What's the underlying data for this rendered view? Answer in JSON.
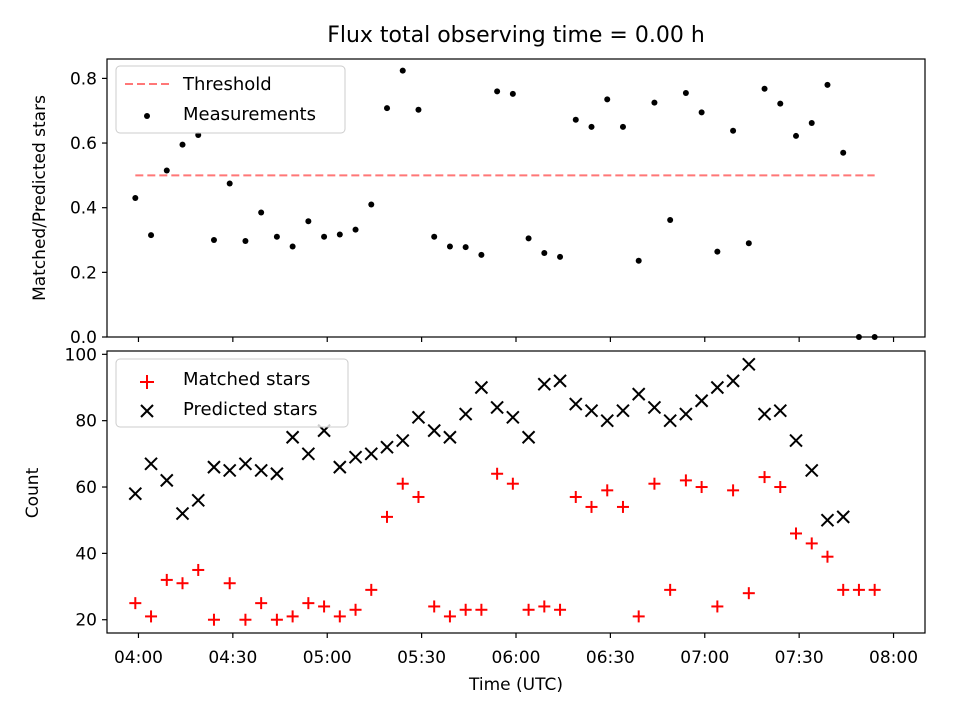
{
  "colors": {
    "threshold": "#ff7777",
    "measurements": "#000000",
    "matched": "#ff0000",
    "predicted": "#000000"
  },
  "chart_data": [
    {
      "type": "scatter",
      "title": "Flux total observing time = 0.00 h",
      "ylabel": "Matched/Predicted stars",
      "ylim": [
        0,
        0.86
      ],
      "yticks": [
        0.0,
        0.2,
        0.4,
        0.6,
        0.8
      ],
      "ytick_labels": [
        "0.0",
        "0.2",
        "0.4",
        "0.6",
        "0.8"
      ],
      "xlim_minutes": [
        -10,
        250
      ],
      "legend": "top-left",
      "grid": false,
      "threshold": {
        "name": "Threshold",
        "value": 0.5,
        "x": [
          "03:59",
          "07:54"
        ]
      },
      "series": [
        {
          "name": "Measurements",
          "points": [
            [
              "03:59",
              0.43
            ],
            [
              "04:04",
              0.315
            ],
            [
              "04:09",
              0.515
            ],
            [
              "04:14",
              0.595
            ],
            [
              "04:19",
              0.625
            ],
            [
              "04:24",
              0.3
            ],
            [
              "04:29",
              0.475
            ],
            [
              "04:34",
              0.297
            ],
            [
              "04:39",
              0.385
            ],
            [
              "04:44",
              0.31
            ],
            [
              "04:49",
              0.28
            ],
            [
              "04:54",
              0.358
            ],
            [
              "04:59",
              0.31
            ],
            [
              "05:04",
              0.317
            ],
            [
              "05:09",
              0.332
            ],
            [
              "05:14",
              0.41
            ],
            [
              "05:19",
              0.708
            ],
            [
              "05:24",
              0.824
            ],
            [
              "05:29",
              0.703
            ],
            [
              "05:34",
              0.31
            ],
            [
              "05:39",
              0.28
            ],
            [
              "05:44",
              0.278
            ],
            [
              "05:49",
              0.254
            ],
            [
              "05:54",
              0.76
            ],
            [
              "05:59",
              0.752
            ],
            [
              "06:04",
              0.305
            ],
            [
              "06:09",
              0.26
            ],
            [
              "06:14",
              0.248
            ],
            [
              "06:19",
              0.672
            ],
            [
              "06:24",
              0.65
            ],
            [
              "06:29",
              0.735
            ],
            [
              "06:34",
              0.65
            ],
            [
              "06:39",
              0.236
            ],
            [
              "06:44",
              0.725
            ],
            [
              "06:49",
              0.362
            ],
            [
              "06:54",
              0.755
            ],
            [
              "06:59",
              0.695
            ],
            [
              "07:04",
              0.264
            ],
            [
              "07:09",
              0.638
            ],
            [
              "07:14",
              0.29
            ],
            [
              "07:19",
              0.768
            ],
            [
              "07:24",
              0.722
            ],
            [
              "07:29",
              0.622
            ],
            [
              "07:34",
              0.662
            ],
            [
              "07:39",
              0.78
            ],
            [
              "07:44",
              0.57
            ],
            [
              "07:49",
              0.0
            ],
            [
              "07:54",
              0.0
            ]
          ]
        }
      ]
    },
    {
      "type": "scatter",
      "xlabel": "Time (UTC)",
      "ylabel": "Count",
      "ylim": [
        16,
        101
      ],
      "yticks": [
        20,
        40,
        60,
        80,
        100
      ],
      "ytick_labels": [
        "20",
        "40",
        "60",
        "80",
        "100"
      ],
      "xlim_minutes": [
        -10,
        250
      ],
      "xticks": [
        "04:00",
        "04:30",
        "05:00",
        "05:30",
        "06:00",
        "06:30",
        "07:00",
        "07:30",
        "08:00"
      ],
      "legend": "top-left",
      "grid": false,
      "series": [
        {
          "name": "Matched stars",
          "points": [
            [
              "03:59",
              25
            ],
            [
              "04:04",
              21
            ],
            [
              "04:09",
              32
            ],
            [
              "04:14",
              31
            ],
            [
              "04:19",
              35
            ],
            [
              "04:24",
              20
            ],
            [
              "04:29",
              31
            ],
            [
              "04:34",
              20
            ],
            [
              "04:39",
              25
            ],
            [
              "04:44",
              20
            ],
            [
              "04:49",
              21
            ],
            [
              "04:54",
              25
            ],
            [
              "04:59",
              24
            ],
            [
              "05:04",
              21
            ],
            [
              "05:09",
              23
            ],
            [
              "05:14",
              29
            ],
            [
              "05:19",
              51
            ],
            [
              "05:24",
              61
            ],
            [
              "05:29",
              57
            ],
            [
              "05:34",
              24
            ],
            [
              "05:39",
              21
            ],
            [
              "05:44",
              23
            ],
            [
              "05:49",
              23
            ],
            [
              "05:54",
              64
            ],
            [
              "05:59",
              61
            ],
            [
              "06:04",
              23
            ],
            [
              "06:09",
              24
            ],
            [
              "06:14",
              23
            ],
            [
              "06:19",
              57
            ],
            [
              "06:24",
              54
            ],
            [
              "06:29",
              59
            ],
            [
              "06:34",
              54
            ],
            [
              "06:39",
              21
            ],
            [
              "06:44",
              61
            ],
            [
              "06:49",
              29
            ],
            [
              "06:54",
              62
            ],
            [
              "06:59",
              60
            ],
            [
              "07:04",
              24
            ],
            [
              "07:09",
              59
            ],
            [
              "07:14",
              28
            ],
            [
              "07:19",
              63
            ],
            [
              "07:24",
              60
            ],
            [
              "07:29",
              46
            ],
            [
              "07:34",
              43
            ],
            [
              "07:39",
              39
            ],
            [
              "07:44",
              29
            ],
            [
              "07:49",
              29
            ],
            [
              "07:54",
              29
            ]
          ]
        },
        {
          "name": "Predicted stars",
          "points": [
            [
              "03:59",
              58
            ],
            [
              "04:04",
              67
            ],
            [
              "04:09",
              62
            ],
            [
              "04:14",
              52
            ],
            [
              "04:19",
              56
            ],
            [
              "04:24",
              66
            ],
            [
              "04:29",
              65
            ],
            [
              "04:34",
              67
            ],
            [
              "04:39",
              65
            ],
            [
              "04:44",
              64
            ],
            [
              "04:49",
              75
            ],
            [
              "04:54",
              70
            ],
            [
              "04:59",
              77
            ],
            [
              "05:04",
              66
            ],
            [
              "05:09",
              69
            ],
            [
              "05:14",
              70
            ],
            [
              "05:19",
              72
            ],
            [
              "05:24",
              74
            ],
            [
              "05:29",
              81
            ],
            [
              "05:34",
              77
            ],
            [
              "05:39",
              75
            ],
            [
              "05:44",
              82
            ],
            [
              "05:49",
              90
            ],
            [
              "05:54",
              84
            ],
            [
              "05:59",
              81
            ],
            [
              "06:04",
              75
            ],
            [
              "06:09",
              91
            ],
            [
              "06:14",
              92
            ],
            [
              "06:19",
              85
            ],
            [
              "06:24",
              83
            ],
            [
              "06:29",
              80
            ],
            [
              "06:34",
              83
            ],
            [
              "06:39",
              88
            ],
            [
              "06:44",
              84
            ],
            [
              "06:49",
              80
            ],
            [
              "06:54",
              82
            ],
            [
              "06:59",
              86
            ],
            [
              "07:04",
              90
            ],
            [
              "07:09",
              92
            ],
            [
              "07:14",
              97
            ],
            [
              "07:19",
              82
            ],
            [
              "07:24",
              83
            ],
            [
              "07:29",
              74
            ],
            [
              "07:34",
              65
            ],
            [
              "07:39",
              50
            ],
            [
              "07:44",
              51
            ]
          ]
        }
      ]
    }
  ]
}
